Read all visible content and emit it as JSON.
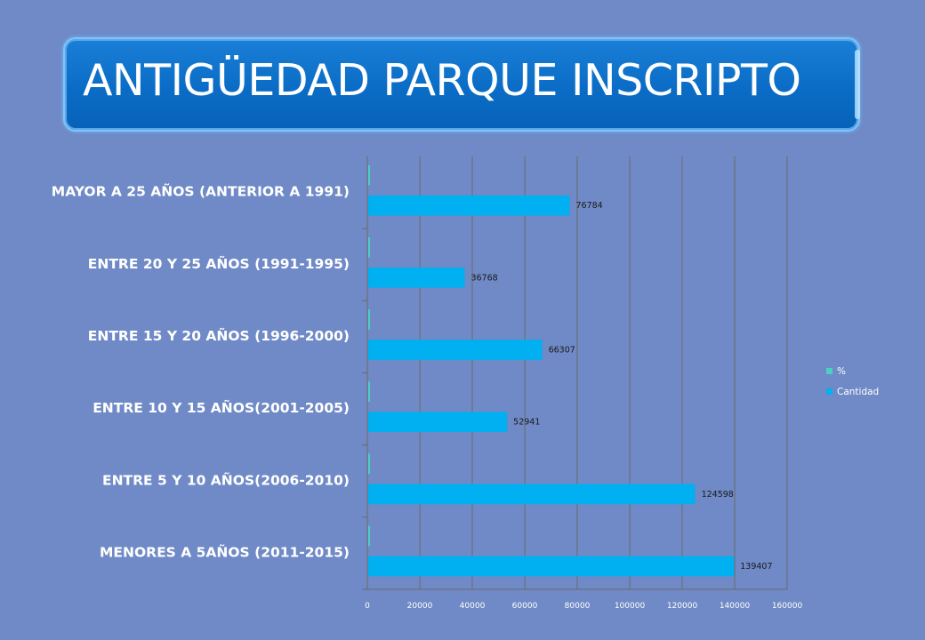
{
  "slide": {
    "title": "ANTIGÜEDAD PARQUE INSCRIPTO"
  },
  "chart_data": {
    "type": "bar",
    "orientation": "horizontal",
    "categories": [
      "MENORES A 5AÑOS (2011-2015)",
      "ENTRE 5 Y 10 AÑOS(2006-2010)",
      "ENTRE 10 Y 15 AÑOS(2001-2005)",
      "ENTRE 15 Y 20 AÑOS (1996-2000)",
      "ENTRE 20 Y 25 AÑOS (1991-1995)",
      "MAYOR A 25 AÑOS (ANTERIOR A 1991)"
    ],
    "series": [
      {
        "name": "Cantidad",
        "color": "#00b0f0",
        "values": [
          139407,
          124598,
          52941,
          66307,
          36768,
          76784
        ]
      },
      {
        "name": "%",
        "color": "#4bd0c8",
        "values": [
          0,
          0,
          0,
          0,
          0,
          0
        ]
      }
    ],
    "data_labels": [
      "139407",
      "124598",
      "52941",
      "66307",
      "36768",
      "76784"
    ],
    "xlim": [
      0,
      160000
    ],
    "x_ticks": [
      "0",
      "20000",
      "40000",
      "60000",
      "80000",
      "100000",
      "120000",
      "140000",
      "160000"
    ],
    "grid": true,
    "legend_position": "right",
    "legend": [
      "%",
      "Cantidad"
    ],
    "title": "",
    "xlabel": "",
    "ylabel": ""
  }
}
